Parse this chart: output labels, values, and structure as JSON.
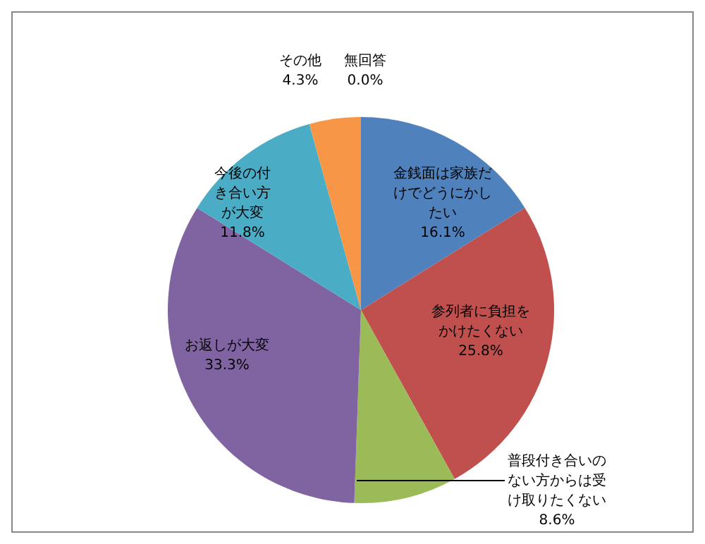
{
  "chart_data": {
    "type": "pie",
    "categories": [
      "金銭面は家族だけでどうにかしたい",
      "参列者に負担をかけたくない",
      "普段付き合いのない方からは受け取りたくない",
      "お返しが大変",
      "今後の付き合い方が大変",
      "その他",
      "無回答"
    ],
    "values": [
      16.1,
      25.8,
      8.6,
      33.3,
      11.8,
      4.3,
      0.0
    ],
    "colors": [
      "#4f81bd",
      "#c0504d",
      "#9bbb59",
      "#8064a2",
      "#4bacc6",
      "#f79646",
      "#2c4d75"
    ],
    "value_labels": [
      "16.1%",
      "25.8%",
      "8.6%",
      "33.3%",
      "11.8%",
      "4.3%",
      "0.0%"
    ],
    "legend": false
  }
}
